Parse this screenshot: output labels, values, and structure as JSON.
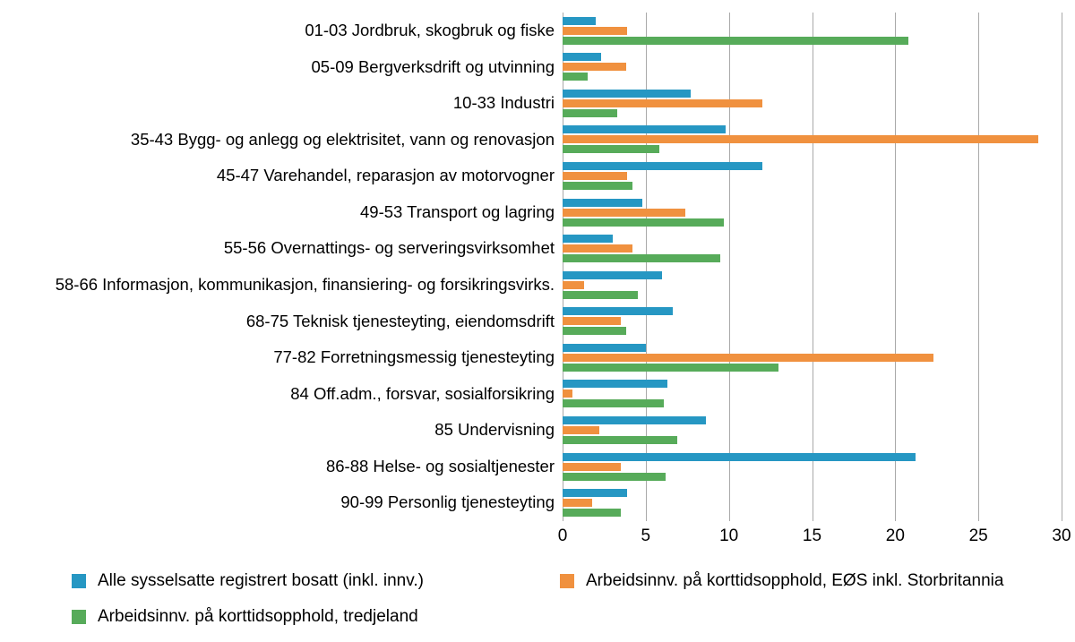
{
  "chart_data": {
    "type": "bar",
    "orientation": "horizontal",
    "title": "",
    "xlabel": "",
    "ylabel": "",
    "xlim": [
      0,
      30
    ],
    "xticks": [
      0,
      5,
      10,
      15,
      20,
      25,
      30
    ],
    "grid": true,
    "legend_position": "bottom",
    "categories": [
      "01-03 Jordbruk, skogbruk og fiske",
      "05-09 Bergverksdrift og utvinning",
      "10-33 Industri",
      "35-43 Bygg- og anlegg og elektrisitet, vann og renovasjon",
      "45-47 Varehandel, reparasjon av motorvogner",
      "49-53 Transport og lagring",
      "55-56 Overnattings- og serveringsvirksomhet",
      "58-66 Informasjon, kommunikasjon, finansiering- og forsikringsvirks.",
      "68-75 Teknisk tjenesteyting, eiendomsdrift",
      "77-82 Forretningsmessig tjenesteyting",
      "84 Off.adm., forsvar, sosialforsikring",
      "85 Undervisning",
      "86-88 Helse- og sosialtjenester",
      "90-99 Personlig tjenesteyting"
    ],
    "series": [
      {
        "key": "bosatt",
        "name": "Alle sysselsatte registrert bosatt (inkl. innv.)",
        "color": "#2697C3",
        "values": [
          2.0,
          2.3,
          7.7,
          9.8,
          12.0,
          4.8,
          3.0,
          6.0,
          6.6,
          5.0,
          6.3,
          8.6,
          21.2,
          3.9
        ]
      },
      {
        "key": "eos",
        "name": "Arbeidsinnv. på korttidsopphold, EØS inkl. Storbritannia",
        "color": "#F0913F",
        "values": [
          3.9,
          3.8,
          12.0,
          28.6,
          3.9,
          7.4,
          4.2,
          1.3,
          3.5,
          22.3,
          0.6,
          2.2,
          3.5,
          1.8
        ]
      },
      {
        "key": "tredjeland",
        "name": "Arbeidsinnv. på korttidsopphold, tredjeland",
        "color": "#57AB5A",
        "values": [
          20.8,
          1.5,
          3.3,
          5.8,
          4.2,
          9.7,
          9.5,
          4.5,
          3.8,
          13.0,
          6.1,
          6.9,
          6.2,
          3.5
        ]
      }
    ],
    "gridline_color": "#a9a9a9"
  }
}
